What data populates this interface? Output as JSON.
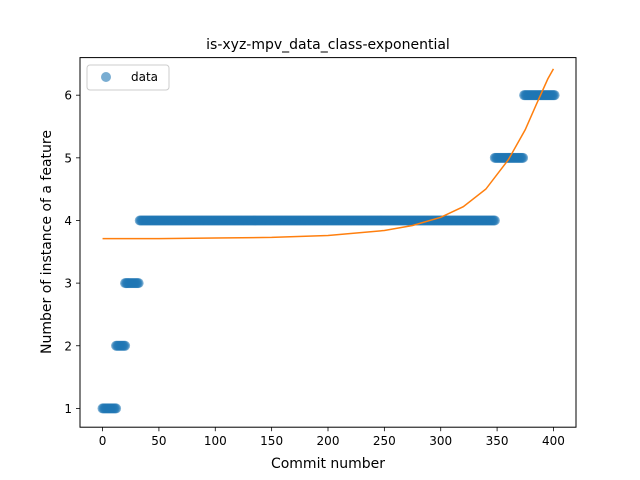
{
  "chart_data": {
    "type": "scatter",
    "title": "is-xyz-mpv_data_class-exponential",
    "xlabel": "Commit number",
    "ylabel": "Number of instance of a feature",
    "xlim": [
      -20,
      420
    ],
    "ylim": [
      0.7,
      6.6
    ],
    "xticks": [
      0,
      50,
      100,
      150,
      200,
      250,
      300,
      350,
      400
    ],
    "yticks": [
      1,
      2,
      3,
      4,
      5,
      6
    ],
    "grid": false,
    "legend_position": "top-left",
    "legend": [
      "data"
    ],
    "series": [
      {
        "name": "data",
        "kind": "points",
        "color": "#1f77b4",
        "segments": [
          {
            "x_start": 0,
            "x_end": 12,
            "y": 1
          },
          {
            "x_start": 12,
            "x_end": 20,
            "y": 2
          },
          {
            "x_start": 20,
            "x_end": 32,
            "y": 3
          },
          {
            "x_start": 33,
            "x_end": 348,
            "y": 4
          },
          {
            "x_start": 348,
            "x_end": 373,
            "y": 5
          },
          {
            "x_start": 374,
            "x_end": 401,
            "y": 6
          }
        ]
      },
      {
        "kind": "line",
        "color": "#ff7f0e",
        "x": [
          0,
          50,
          100,
          150,
          200,
          250,
          275,
          300,
          320,
          340,
          360,
          375,
          385,
          395,
          400
        ],
        "y": [
          3.71,
          3.71,
          3.72,
          3.73,
          3.76,
          3.84,
          3.92,
          4.05,
          4.22,
          4.5,
          4.97,
          5.45,
          5.86,
          6.26,
          6.42
        ]
      }
    ]
  }
}
